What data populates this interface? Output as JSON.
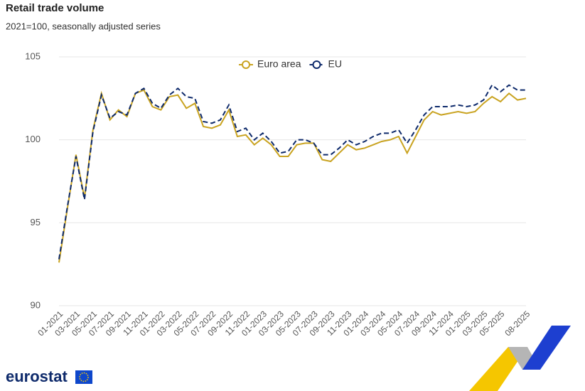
{
  "chart_data": {
    "type": "line",
    "title": "Retail trade volume",
    "subtitle": "2021=100, seasonally adjusted series",
    "logo": "eurostat",
    "categories": [
      "01-2021",
      null,
      "03-2021",
      null,
      "05-2021",
      null,
      "07-2021",
      null,
      "09-2021",
      null,
      "11-2021",
      null,
      "01-2022",
      null,
      "03-2022",
      null,
      "05-2022",
      null,
      "07-2022",
      null,
      "09-2022",
      null,
      "11-2022",
      null,
      "01-2023",
      null,
      "03-2023",
      null,
      "05-2023",
      null,
      "07-2023",
      null,
      "09-2023",
      null,
      "11-2023",
      null,
      "01-2024",
      null,
      "03-2024",
      null,
      "05-2024",
      null,
      "07-2024",
      null,
      "09-2024",
      null,
      "11-2024",
      null,
      "01-2025",
      null,
      "03-2025",
      null,
      "05-2025",
      null,
      null,
      "08-2025"
    ],
    "series": [
      {
        "name": "Euro area",
        "color": "#c9a320",
        "dash": false,
        "values": [
          92.6,
          95.9,
          99.1,
          96.5,
          100.6,
          102.8,
          101.2,
          101.8,
          101.4,
          102.8,
          103.0,
          102.0,
          101.8,
          102.6,
          102.7,
          101.9,
          102.2,
          100.8,
          100.7,
          100.9,
          101.8,
          100.2,
          100.3,
          99.7,
          100.1,
          99.7,
          99.0,
          99.0,
          99.7,
          99.8,
          99.8,
          98.8,
          98.7,
          99.2,
          99.7,
          99.4,
          99.5,
          99.7,
          99.9,
          100.0,
          100.2,
          99.2,
          100.2,
          101.2,
          101.7,
          101.5,
          101.6,
          101.7,
          101.6,
          101.7,
          102.2,
          102.6,
          102.3,
          102.8,
          102.4,
          102.5
        ]
      },
      {
        "name": "EU",
        "color": "#0e2a6b",
        "dash": true,
        "values": [
          92.8,
          96.0,
          99.0,
          96.4,
          100.5,
          102.7,
          101.3,
          101.7,
          101.5,
          102.8,
          103.1,
          102.2,
          101.9,
          102.7,
          103.1,
          102.6,
          102.5,
          101.1,
          101.0,
          101.2,
          102.1,
          100.5,
          100.7,
          100.0,
          100.4,
          99.9,
          99.2,
          99.3,
          100.0,
          100.0,
          99.8,
          99.1,
          99.1,
          99.5,
          100.0,
          99.7,
          99.9,
          100.2,
          100.4,
          100.4,
          100.6,
          99.8,
          100.6,
          101.5,
          102.0,
          102.0,
          102.0,
          102.1,
          102.0,
          102.1,
          102.4,
          103.3,
          102.9,
          103.3,
          103.0,
          103.0
        ]
      }
    ],
    "ylim": [
      90,
      105
    ],
    "yticks": [
      90,
      95,
      100,
      105
    ],
    "grid": true,
    "legend": "top"
  }
}
